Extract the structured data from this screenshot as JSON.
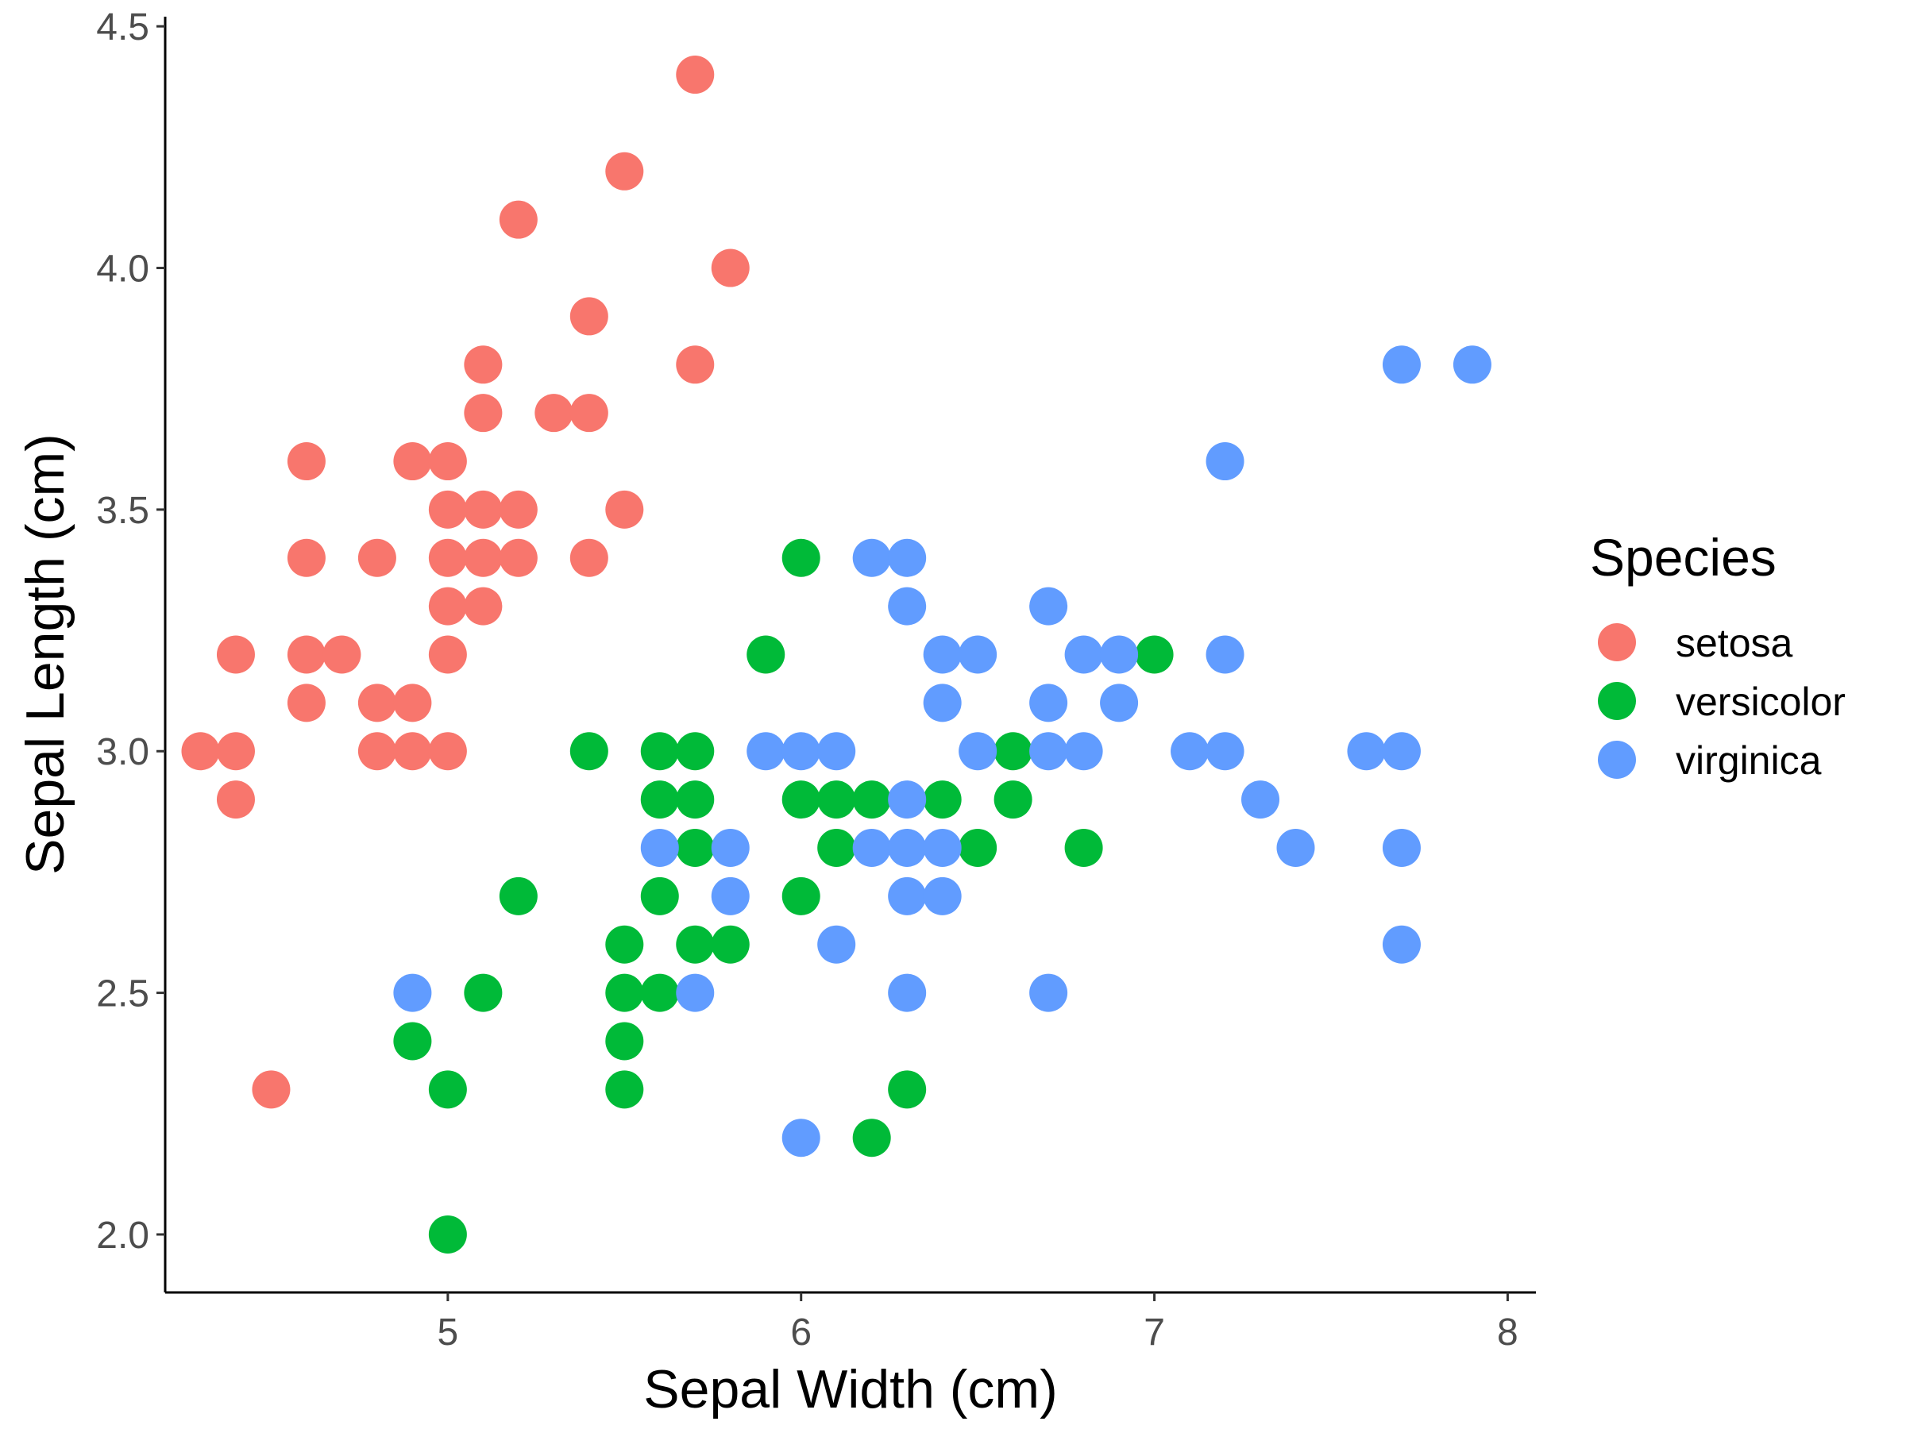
{
  "chart_data": {
    "type": "scatter",
    "xlabel": "Sepal Width (cm)",
    "ylabel": "Sepal Length (cm)",
    "xlim": [
      4.2,
      8.08
    ],
    "ylim": [
      1.88,
      4.52
    ],
    "xticks": [
      5,
      6,
      7,
      8
    ],
    "yticks": [
      2.0,
      2.5,
      3.0,
      3.5,
      4.0,
      4.5
    ],
    "xtick_labels": [
      "5",
      "6",
      "7",
      "8"
    ],
    "ytick_labels": [
      "2.0",
      "2.5",
      "3.0",
      "3.5",
      "4.0",
      "4.5"
    ],
    "grid": false,
    "legend": {
      "title": "Species",
      "position": "right"
    },
    "series": [
      {
        "name": "setosa",
        "color": "#F8766D",
        "points": [
          [
            5.7,
            4.4
          ],
          [
            5.5,
            4.2
          ],
          [
            5.2,
            4.1
          ],
          [
            5.8,
            4.0
          ],
          [
            5.4,
            3.9
          ],
          [
            5.1,
            3.8
          ],
          [
            5.7,
            3.8
          ],
          [
            5.1,
            3.7
          ],
          [
            5.3,
            3.7
          ],
          [
            5.4,
            3.7
          ],
          [
            4.6,
            3.6
          ],
          [
            4.9,
            3.6
          ],
          [
            5.0,
            3.6
          ],
          [
            5.0,
            3.5
          ],
          [
            5.1,
            3.5
          ],
          [
            5.2,
            3.5
          ],
          [
            5.5,
            3.5
          ],
          [
            4.6,
            3.4
          ],
          [
            4.8,
            3.4
          ],
          [
            5.0,
            3.4
          ],
          [
            5.1,
            3.4
          ],
          [
            5.2,
            3.4
          ],
          [
            5.4,
            3.4
          ],
          [
            5.0,
            3.3
          ],
          [
            5.1,
            3.3
          ],
          [
            4.4,
            3.2
          ],
          [
            4.6,
            3.2
          ],
          [
            4.7,
            3.2
          ],
          [
            5.0,
            3.2
          ],
          [
            4.6,
            3.1
          ],
          [
            4.8,
            3.1
          ],
          [
            4.9,
            3.1
          ],
          [
            4.3,
            3.0
          ],
          [
            4.4,
            3.0
          ],
          [
            4.8,
            3.0
          ],
          [
            4.9,
            3.0
          ],
          [
            5.0,
            3.0
          ],
          [
            4.4,
            2.9
          ],
          [
            4.5,
            2.3
          ]
        ]
      },
      {
        "name": "versicolor",
        "color": "#00BA38",
        "points": [
          [
            6.0,
            3.4
          ],
          [
            5.9,
            3.2
          ],
          [
            7.0,
            3.2
          ],
          [
            5.4,
            3.0
          ],
          [
            5.6,
            3.0
          ],
          [
            5.7,
            3.0
          ],
          [
            6.6,
            3.0
          ],
          [
            5.6,
            2.9
          ],
          [
            5.7,
            2.9
          ],
          [
            6.0,
            2.9
          ],
          [
            6.1,
            2.9
          ],
          [
            6.2,
            2.9
          ],
          [
            6.4,
            2.9
          ],
          [
            6.6,
            2.9
          ],
          [
            5.7,
            2.8
          ],
          [
            6.1,
            2.8
          ],
          [
            6.5,
            2.8
          ],
          [
            6.8,
            2.8
          ],
          [
            5.2,
            2.7
          ],
          [
            5.6,
            2.7
          ],
          [
            6.0,
            2.7
          ],
          [
            5.5,
            2.6
          ],
          [
            5.7,
            2.6
          ],
          [
            5.8,
            2.6
          ],
          [
            5.1,
            2.5
          ],
          [
            5.5,
            2.5
          ],
          [
            5.6,
            2.5
          ],
          [
            4.9,
            2.4
          ],
          [
            5.5,
            2.4
          ],
          [
            5.0,
            2.3
          ],
          [
            5.5,
            2.3
          ],
          [
            6.3,
            2.3
          ],
          [
            6.2,
            2.2
          ],
          [
            5.0,
            2.0
          ]
        ]
      },
      {
        "name": "virginica",
        "color": "#619CFF",
        "points": [
          [
            7.7,
            3.8
          ],
          [
            7.9,
            3.8
          ],
          [
            7.2,
            3.6
          ],
          [
            6.2,
            3.4
          ],
          [
            6.3,
            3.4
          ],
          [
            6.3,
            3.3
          ],
          [
            6.7,
            3.3
          ],
          [
            6.4,
            3.2
          ],
          [
            6.5,
            3.2
          ],
          [
            6.8,
            3.2
          ],
          [
            6.9,
            3.2
          ],
          [
            7.2,
            3.2
          ],
          [
            6.4,
            3.1
          ],
          [
            6.7,
            3.1
          ],
          [
            6.9,
            3.1
          ],
          [
            5.9,
            3.0
          ],
          [
            6.0,
            3.0
          ],
          [
            6.1,
            3.0
          ],
          [
            6.5,
            3.0
          ],
          [
            6.7,
            3.0
          ],
          [
            6.8,
            3.0
          ],
          [
            7.1,
            3.0
          ],
          [
            7.2,
            3.0
          ],
          [
            7.6,
            3.0
          ],
          [
            7.7,
            3.0
          ],
          [
            6.3,
            2.9
          ],
          [
            7.3,
            2.9
          ],
          [
            5.6,
            2.8
          ],
          [
            5.8,
            2.8
          ],
          [
            6.2,
            2.8
          ],
          [
            6.3,
            2.8
          ],
          [
            6.4,
            2.8
          ],
          [
            7.4,
            2.8
          ],
          [
            7.7,
            2.8
          ],
          [
            5.8,
            2.7
          ],
          [
            6.3,
            2.7
          ],
          [
            6.4,
            2.7
          ],
          [
            6.1,
            2.6
          ],
          [
            7.7,
            2.6
          ],
          [
            4.9,
            2.5
          ],
          [
            5.7,
            2.5
          ],
          [
            6.3,
            2.5
          ],
          [
            6.7,
            2.5
          ],
          [
            6.0,
            2.2
          ]
        ]
      }
    ]
  }
}
